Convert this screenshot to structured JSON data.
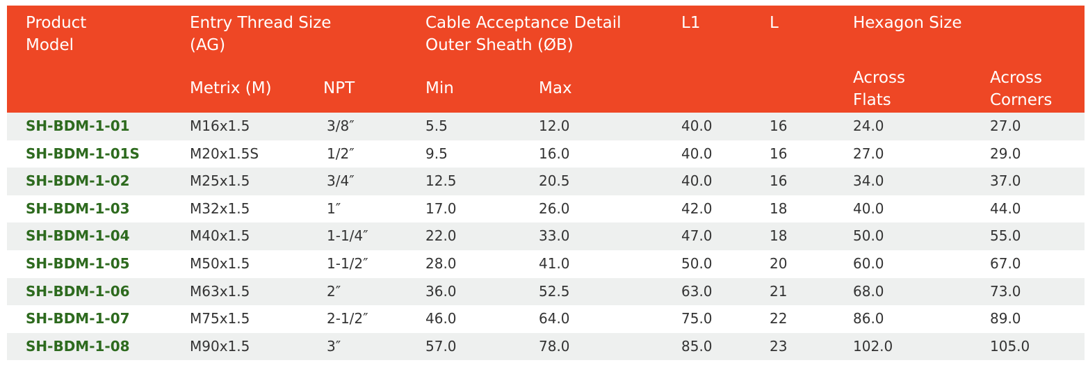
{
  "table": {
    "header": {
      "groups": [
        {
          "lines": [
            "Product",
            "Model"
          ]
        },
        {
          "lines": [
            "Entry Thread Size",
            "(AG)"
          ]
        },
        {
          "lines": [
            "Cable Acceptance Detail",
            "Outer Sheath (ØB)"
          ]
        },
        {
          "lines": [
            "L1"
          ]
        },
        {
          "lines": [
            "L"
          ]
        },
        {
          "lines": [
            "Hexagon Size"
          ]
        }
      ],
      "sub": [
        {
          "lines": [
            "Metrix (M)"
          ]
        },
        {
          "lines": [
            "NPT"
          ]
        },
        {
          "lines": [
            "Min"
          ]
        },
        {
          "lines": [
            "Max"
          ]
        },
        {
          "lines": [
            "Across",
            "Flats"
          ]
        },
        {
          "lines": [
            "Across",
            "Corners"
          ]
        }
      ]
    },
    "rows": [
      [
        "SH-BDM-1-01",
        "M16x1.5",
        "3/8″",
        "5.5",
        "12.0",
        "40.0",
        "16",
        "24.0",
        "27.0"
      ],
      [
        "SH-BDM-1-01S",
        "M20x1.5S",
        "1/2″",
        "9.5",
        "16.0",
        "40.0",
        "16",
        "27.0",
        "29.0"
      ],
      [
        "SH-BDM-1-02",
        "M25x1.5",
        "3/4″",
        "12.5",
        "20.5",
        "40.0",
        "16",
        "34.0",
        "37.0"
      ],
      [
        "SH-BDM-1-03",
        "M32x1.5",
        "1″",
        "17.0",
        "26.0",
        "42.0",
        "18",
        "40.0",
        "44.0"
      ],
      [
        "SH-BDM-1-04",
        "M40x1.5",
        "1-1/4″",
        "22.0",
        "33.0",
        "47.0",
        "18",
        "50.0",
        "55.0"
      ],
      [
        "SH-BDM-1-05",
        "M50x1.5",
        "1-1/2″",
        "28.0",
        "41.0",
        "50.0",
        "20",
        "60.0",
        "67.0"
      ],
      [
        "SH-BDM-1-06",
        "M63x1.5",
        "2″",
        "36.0",
        "52.5",
        "63.0",
        "21",
        "68.0",
        "73.0"
      ],
      [
        "SH-BDM-1-07",
        "M75x1.5",
        "2-1/2″",
        "46.0",
        "64.0",
        "75.0",
        "22",
        "86.0",
        "89.0"
      ],
      [
        "SH-BDM-1-08",
        "M90x1.5",
        "3″",
        "57.0",
        "78.0",
        "85.0",
        "23",
        "102.0",
        "105.0"
      ]
    ]
  }
}
